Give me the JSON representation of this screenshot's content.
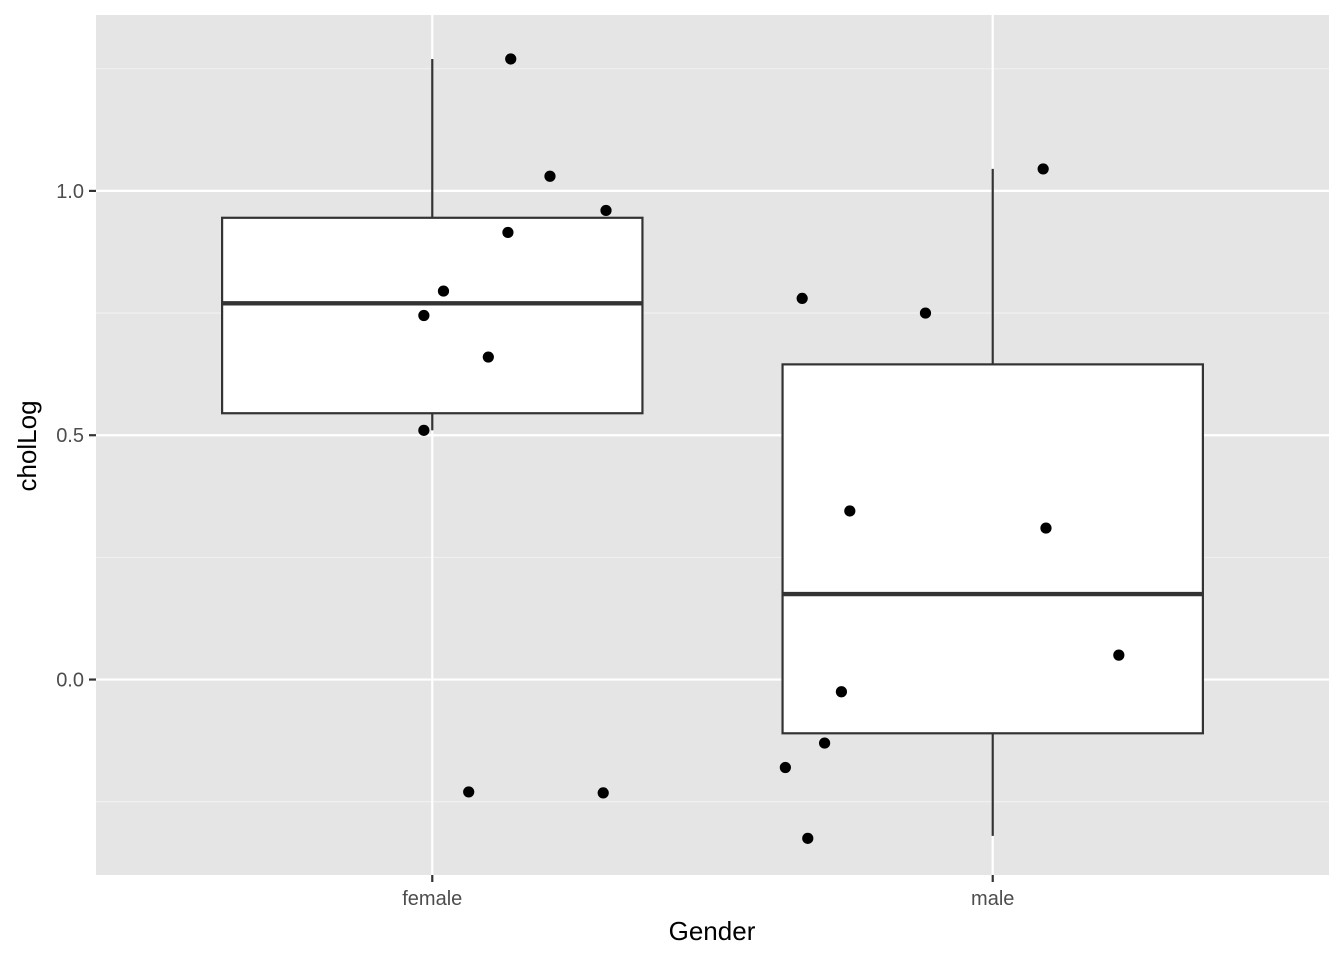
{
  "chart_data": {
    "type": "box",
    "xlabel": "Gender",
    "ylabel": "cholLog",
    "categories": [
      "female",
      "male"
    ],
    "ylim": [
      -0.4,
      1.36
    ],
    "yticks": [
      0.0,
      0.5,
      1.0
    ],
    "ytick_labels": [
      "0.0",
      "0.5",
      "1.0"
    ],
    "grid": true,
    "boxes": [
      {
        "category": "female",
        "whisker_low": 0.51,
        "q1": 0.545,
        "median": 0.77,
        "q3": 0.945,
        "whisker_high": 1.27
      },
      {
        "category": "male",
        "whisker_low": -0.32,
        "q1": -0.11,
        "median": 0.175,
        "q3": 0.645,
        "whisker_high": 1.045
      }
    ],
    "points": [
      {
        "category": "female",
        "jitter": 0.14,
        "y": 1.27
      },
      {
        "category": "female",
        "jitter": 0.21,
        "y": 1.03
      },
      {
        "category": "female",
        "jitter": 0.31,
        "y": 0.96
      },
      {
        "category": "female",
        "jitter": 0.135,
        "y": 0.915
      },
      {
        "category": "female",
        "jitter": 0.02,
        "y": 0.795
      },
      {
        "category": "female",
        "jitter": -0.015,
        "y": 0.745
      },
      {
        "category": "female",
        "jitter": 0.1,
        "y": 0.66
      },
      {
        "category": "female",
        "jitter": -0.015,
        "y": 0.51
      },
      {
        "category": "female",
        "jitter": 0.065,
        "y": -0.23
      },
      {
        "category": "female",
        "jitter": 0.305,
        "y": -0.232
      },
      {
        "category": "male",
        "jitter": 0.09,
        "y": 1.045
      },
      {
        "category": "male",
        "jitter": -0.34,
        "y": 0.78
      },
      {
        "category": "male",
        "jitter": -0.12,
        "y": 0.75
      },
      {
        "category": "male",
        "jitter": -0.255,
        "y": 0.345
      },
      {
        "category": "male",
        "jitter": 0.095,
        "y": 0.31
      },
      {
        "category": "male",
        "jitter": 0.225,
        "y": 0.05
      },
      {
        "category": "male",
        "jitter": -0.27,
        "y": -0.025
      },
      {
        "category": "male",
        "jitter": -0.3,
        "y": -0.13
      },
      {
        "category": "male",
        "jitter": -0.37,
        "y": -0.18
      },
      {
        "category": "male",
        "jitter": -0.33,
        "y": -0.325
      }
    ],
    "colors": {
      "panel_background": "#e5e5e5",
      "grid_major": "#ffffff",
      "grid_minor": "#f2f2f2",
      "box_fill": "#ffffff",
      "box_stroke": "#333333",
      "point": "#000000"
    }
  }
}
